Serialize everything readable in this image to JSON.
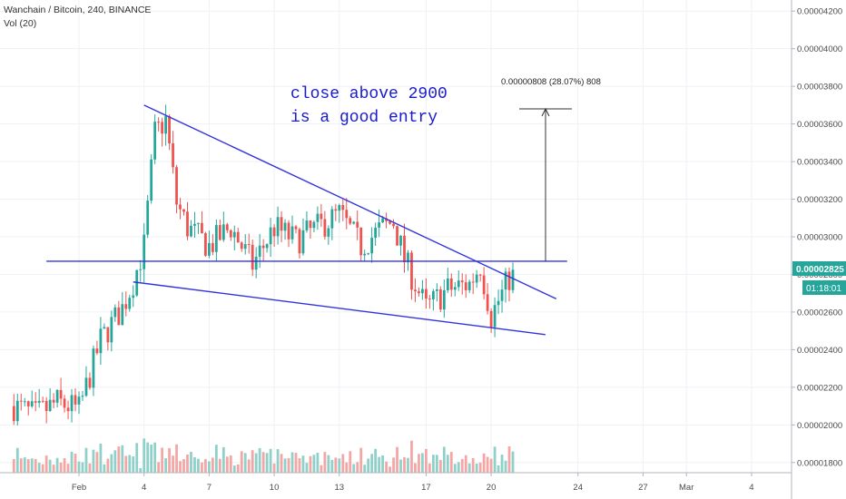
{
  "legend": {
    "title": "Wanchain / Bitcoin, 240, BINANCE",
    "volume_label": "Vol (20)"
  },
  "annotation": {
    "line1": "close above 2900",
    "line2": "is a good entry",
    "color": "#1a1acc"
  },
  "measure": {
    "label": "0.00000808 (28.07%) 808"
  },
  "price_badge": {
    "price": "0.00002825",
    "countdown": "01:18:01",
    "color": "#26a69a"
  },
  "colors": {
    "up": "#26a69a",
    "down": "#ef5350",
    "trendline": "#3333dd",
    "volume_up": "#8fd1c9",
    "volume_down": "#f4a6a5"
  },
  "chart_data": {
    "type": "candlestick",
    "symbol": "Wanchain / Bitcoin",
    "interval": "240",
    "exchange": "BINANCE",
    "y_ticks": [
      4.2e-05,
      4e-05,
      3.8e-05,
      3.6e-05,
      3.4e-05,
      3.2e-05,
      3e-05,
      2.8e-05,
      2.6e-05,
      2.4e-05,
      2.2e-05,
      2e-05,
      1.8e-05
    ],
    "y_tick_labels": [
      "0.00004200",
      "0.00004000",
      "0.00003800",
      "0.00003600",
      "0.00003400",
      "0.00003200",
      "0.00003000",
      "0.00002800",
      "0.00002600",
      "0.00002400",
      "0.00002200",
      "0.00002000",
      "0.00001800"
    ],
    "ylim": [
      1.77e-05,
      4.23e-05
    ],
    "x_ticks": [
      "Feb",
      "4",
      "7",
      "10",
      "13",
      "17",
      "20",
      "24",
      "27",
      "Mar",
      "4"
    ],
    "ohlc_anchors": [
      [
        "Jan 29 00:00",
        2.1e-05
      ],
      [
        "Jan 30 00:00",
        2.05e-05
      ],
      [
        "Jan 31 00:00",
        2.12e-05
      ],
      [
        "Feb 1 00:00",
        2.08e-05
      ],
      [
        "Feb 2 00:00",
        2.45e-05
      ],
      [
        "Feb 3 00:00",
        2.62e-05
      ],
      [
        "Feb 3 12:00",
        2.76e-05
      ],
      [
        "Feb 4 00:00",
        2.95e-05
      ],
      [
        "Feb 4 12:00",
        3.55e-05
      ],
      [
        "Feb 5 00:00",
        3.62e-05
      ],
      [
        "Feb 5 12:00",
        3.18e-05
      ],
      [
        "Feb 6 00:00",
        3.05e-05
      ],
      [
        "Feb 7 00:00",
        2.95e-05
      ],
      [
        "Feb 8 00:00",
        3.05e-05
      ],
      [
        "Feb 9 00:00",
        2.85e-05
      ],
      [
        "Feb 10 00:00",
        3.05e-05
      ],
      [
        "Feb 11 00:00",
        2.98e-05
      ],
      [
        "Feb 12 00:00",
        3.05e-05
      ],
      [
        "Feb 13 00:00",
        3.12e-05
      ],
      [
        "Feb 14 00:00",
        2.95e-05
      ],
      [
        "Feb 15 00:00",
        3.05e-05
      ],
      [
        "Feb 15 12:00",
        3.08e-05
      ],
      [
        "Feb 16 00:00",
        2.88e-05
      ],
      [
        "Feb 17 00:00",
        2.62e-05
      ],
      [
        "Feb 18 00:00",
        2.72e-05
      ],
      [
        "Feb 19 00:00",
        2.75e-05
      ],
      [
        "Feb 19 12:00",
        2.85e-05
      ],
      [
        "Feb 20 00:00",
        2.58e-05
      ],
      [
        "Feb 21 00:00",
        2.82e-05
      ]
    ],
    "lines": [
      {
        "name": "descending resistance",
        "from": [
          "Feb 4 00:00",
          3.7e-05
        ],
        "to": [
          "Feb 23 00:00",
          2.67e-05
        ]
      },
      {
        "name": "horizontal support",
        "from": [
          "Jan 30 12:00",
          2.87e-05
        ],
        "to": [
          "Feb 23 12:00",
          2.87e-05
        ]
      },
      {
        "name": "lower trendline",
        "from": [
          "Feb 3 12:00",
          2.76e-05
        ],
        "to": [
          "Feb 22 12:00",
          2.48e-05
        ]
      }
    ],
    "measure": {
      "from": 2.87e-05,
      "to": 3.68e-05,
      "change": 8.08e-06,
      "change_pct": 28.07,
      "ticks": 808
    },
    "last_price": 2.825e-05
  }
}
